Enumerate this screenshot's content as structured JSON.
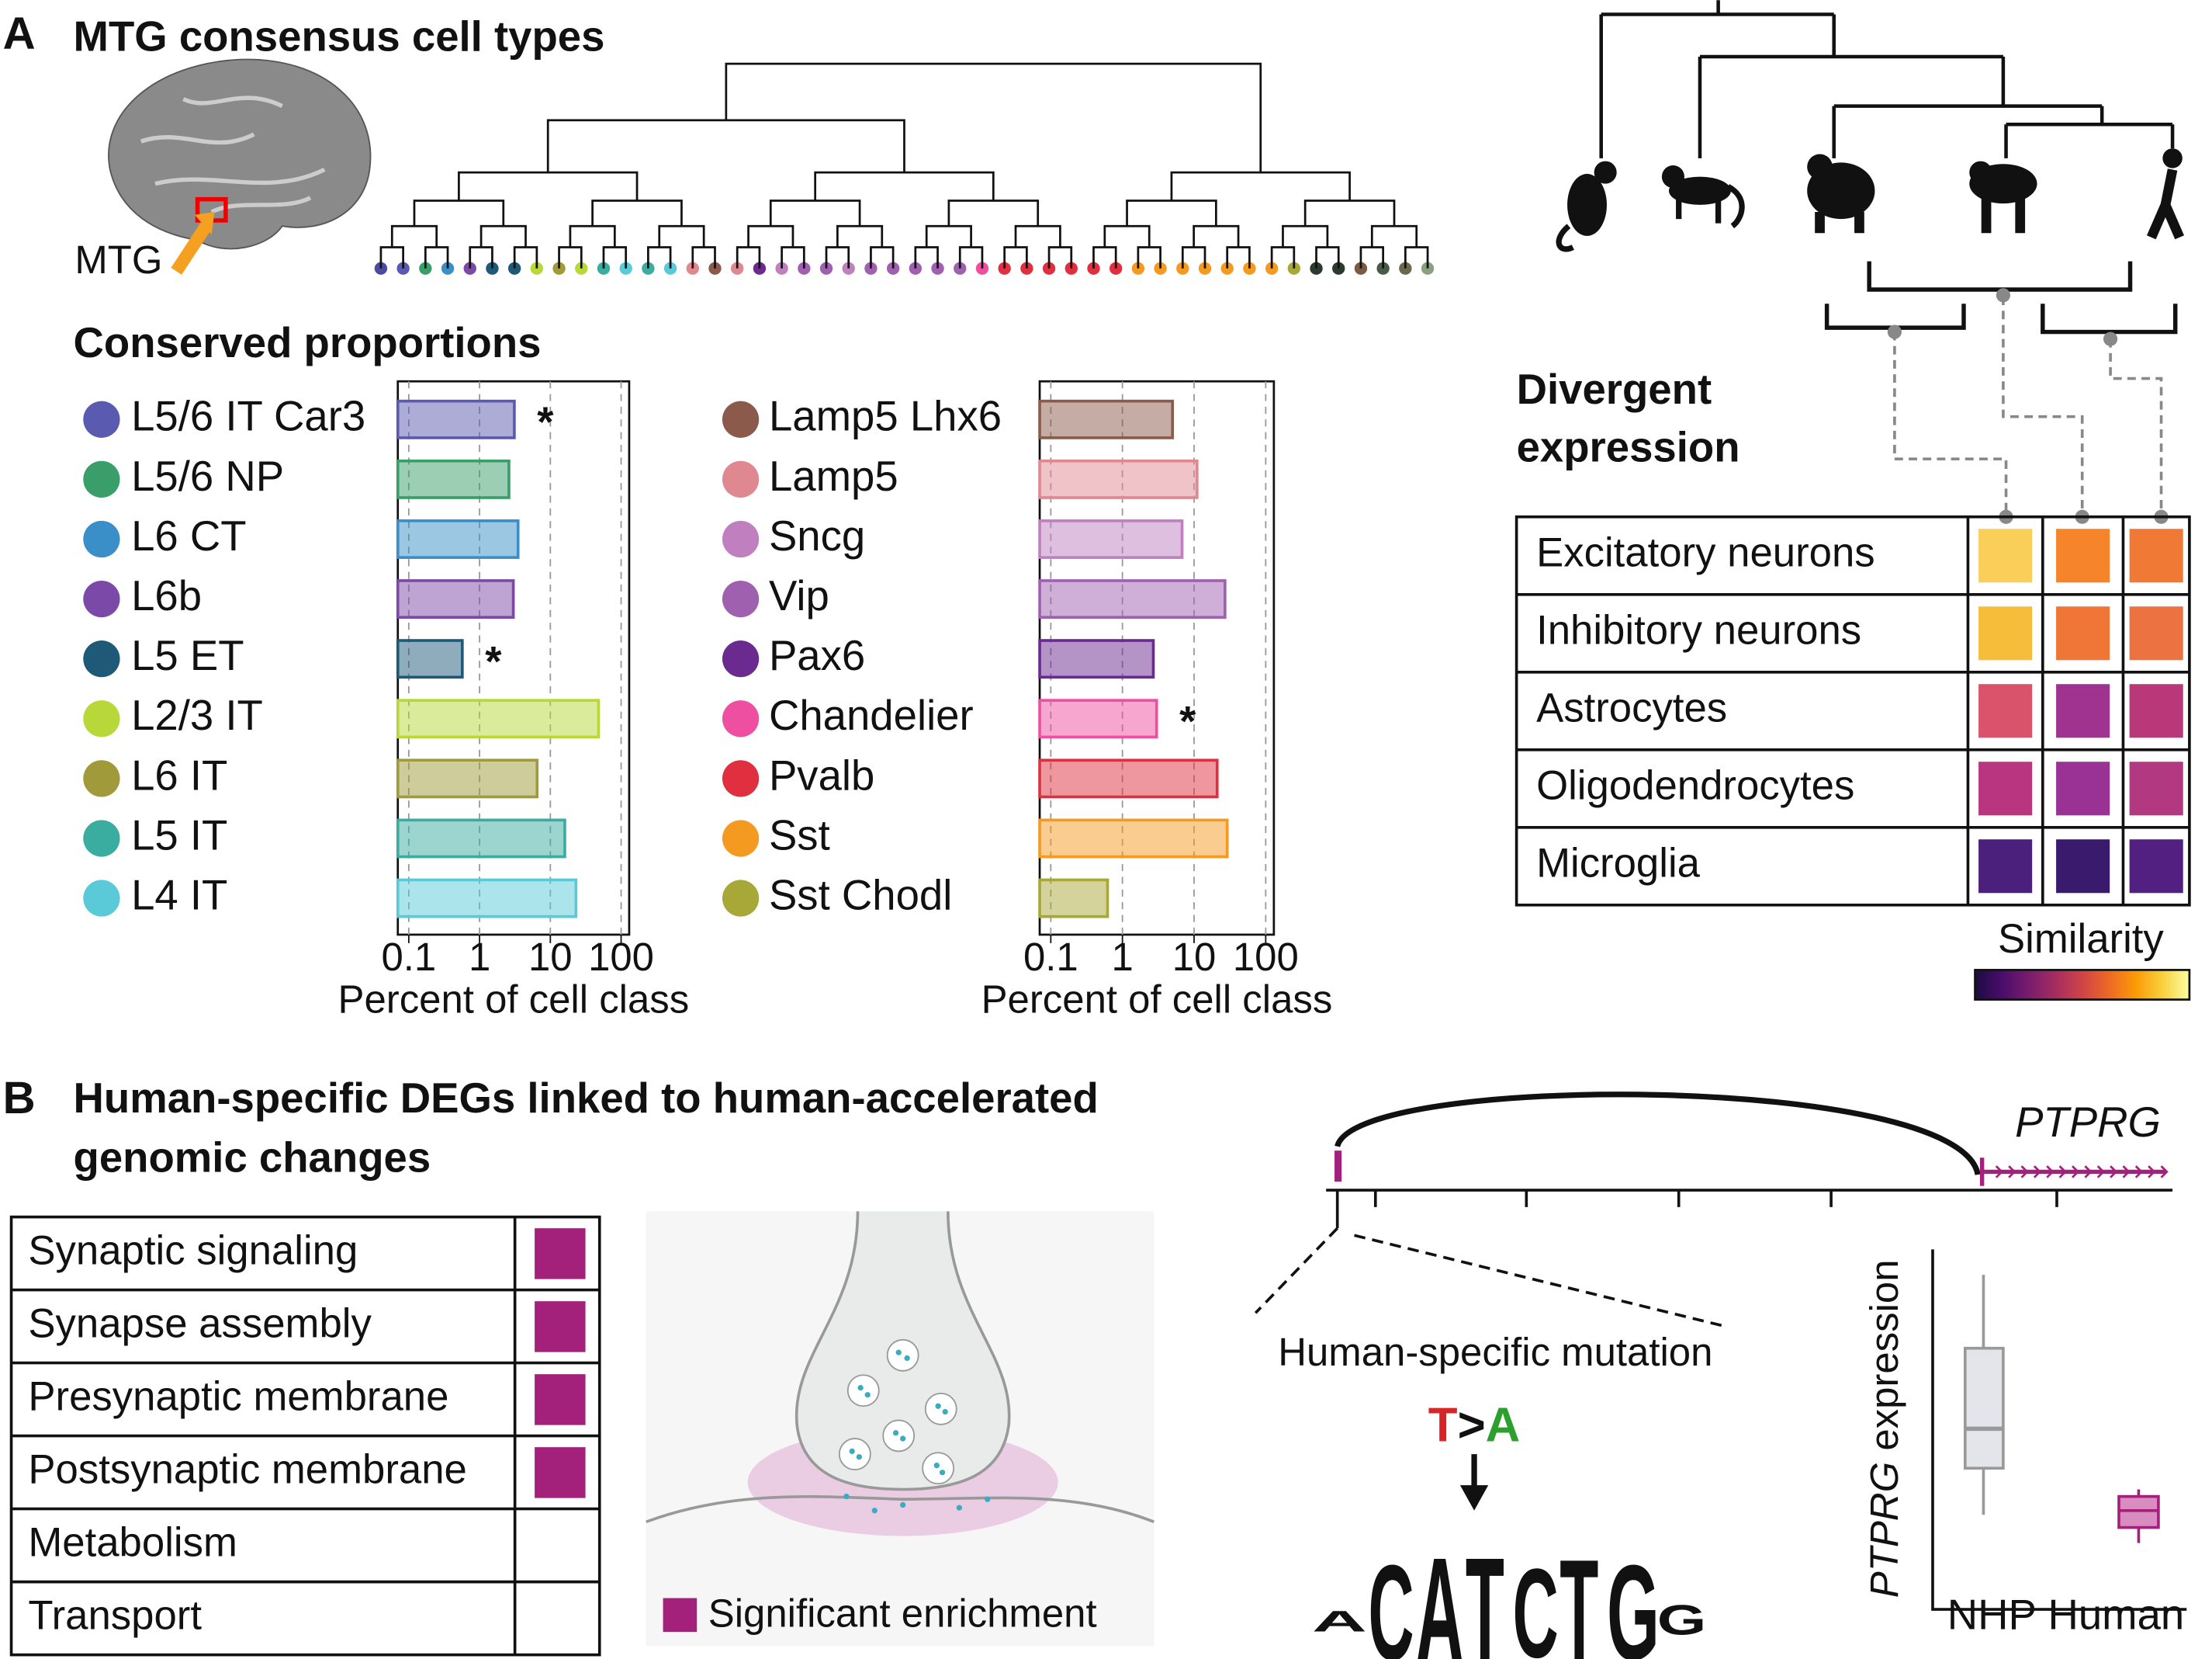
{
  "panel_a": {
    "label": "A",
    "title": "MTG consensus cell types",
    "brain_label": "MTG",
    "proportions_title": "Conserved proportions",
    "divergent_title_lines": [
      "Divergent",
      "expression"
    ]
  },
  "chart_data": [
    {
      "type": "bar",
      "orientation": "horizontal",
      "log_x": true,
      "grid": true,
      "categories": [
        "L5/6 IT Car3",
        "L5/6 NP",
        "L6 CT",
        "L6b",
        "L5 ET",
        "L2/3 IT",
        "L6 IT",
        "L5 IT",
        "L4 IT"
      ],
      "colors": [
        "#5a5ab0",
        "#3a9e6a",
        "#3a8fc8",
        "#7b4aa8",
        "#1e5a78",
        "#b8d83a",
        "#a09a3a",
        "#3aaca0",
        "#5acad8"
      ],
      "values": [
        3.1,
        2.6,
        3.5,
        3.0,
        0.57,
        48,
        6.5,
        16,
        23
      ],
      "xlim": [
        0.07,
        130
      ],
      "xticks": [
        0.1,
        1,
        10,
        100
      ],
      "xlabel": "Percent of cell class",
      "annotations": [
        {
          "index": 0,
          "text": "*"
        },
        {
          "index": 4,
          "text": "*"
        }
      ]
    },
    {
      "type": "bar",
      "orientation": "horizontal",
      "log_x": true,
      "grid": true,
      "categories": [
        "Lamp5 Lhx6",
        "Lamp5",
        "Sncg",
        "Vip",
        "Pax6",
        "Chandelier",
        "Pvalb",
        "Sst",
        "Sst Chodl"
      ],
      "colors": [
        "#8c5a4a",
        "#e08890",
        "#c080c0",
        "#a060b0",
        "#6a2a90",
        "#ef4fa0",
        "#e03040",
        "#f59a20",
        "#a8a838"
      ],
      "values": [
        5.0,
        11,
        6.8,
        27,
        2.7,
        3.0,
        21,
        29,
        0.62
      ],
      "xlim": [
        0.07,
        130
      ],
      "xticks": [
        0.1,
        1,
        10,
        100
      ],
      "xlabel": "Percent of cell class",
      "annotations": [
        {
          "index": 5,
          "text": "*"
        }
      ]
    }
  ],
  "similarity": {
    "rows": [
      "Excitatory neurons",
      "Inhibitory neurons",
      "Astrocytes",
      "Oligodendrocytes",
      "Microglia"
    ],
    "colors": [
      [
        "#f9cf5a",
        "#f5842a",
        "#f07a35"
      ],
      [
        "#f6bd3a",
        "#ef7637",
        "#ec7242"
      ],
      [
        "#d9546a",
        "#a0338f",
        "#b8387a"
      ],
      [
        "#b93580",
        "#9a3296",
        "#b13881"
      ],
      [
        "#4b1f7c",
        "#3a1a6c",
        "#512080"
      ]
    ],
    "legend_title": "Similarity",
    "colormap": [
      "#1b0c41",
      "#4a0c6b",
      "#781c6d",
      "#a52c60",
      "#cf4446",
      "#ed6925",
      "#fb9b06",
      "#f7d13d",
      "#fcffa4"
    ]
  },
  "panel_b": {
    "label": "B",
    "title_lines": [
      "Human-specific DEGs linked to human-accelerated",
      "genomic changes"
    ],
    "terms": [
      {
        "name": "Synaptic signaling",
        "enriched": true
      },
      {
        "name": "Synapse assembly",
        "enriched": true
      },
      {
        "name": "Presynaptic membrane",
        "enriched": true
      },
      {
        "name": "Postsynaptic membrane",
        "enriched": true
      },
      {
        "name": "Metabolism",
        "enriched": false
      },
      {
        "name": "Transport",
        "enriched": false
      }
    ],
    "enrichment_color": "#a3217a",
    "legend": "Significant enrichment",
    "gene": "PTPRG",
    "mutation_label": "Human-specific mutation",
    "mutation_parts": [
      "T",
      ">",
      "A"
    ],
    "mutation_colors": [
      "#d62728",
      "#111111",
      "#2ca02c"
    ],
    "motif": [
      {
        "letter": "A",
        "color": "#2ca02c"
      },
      {
        "letter": "C",
        "color": "#1f77b4"
      },
      {
        "letter": "A",
        "color": "#2ca02c"
      },
      {
        "letter": "T",
        "color": "#d62728"
      },
      {
        "letter": "C",
        "color": "#1f77b4"
      },
      {
        "letter": "T",
        "color": "#d62728"
      },
      {
        "letter": "G",
        "color": "#f5a623"
      },
      {
        "letter": "G",
        "color": "#f5a623"
      }
    ],
    "boxplot": {
      "categories": [
        "NHP",
        "Human"
      ],
      "colors": [
        "#999999",
        "#a3217a"
      ],
      "ylabel_gene": "PTPRG",
      "ylabel_rest": " expression"
    }
  }
}
